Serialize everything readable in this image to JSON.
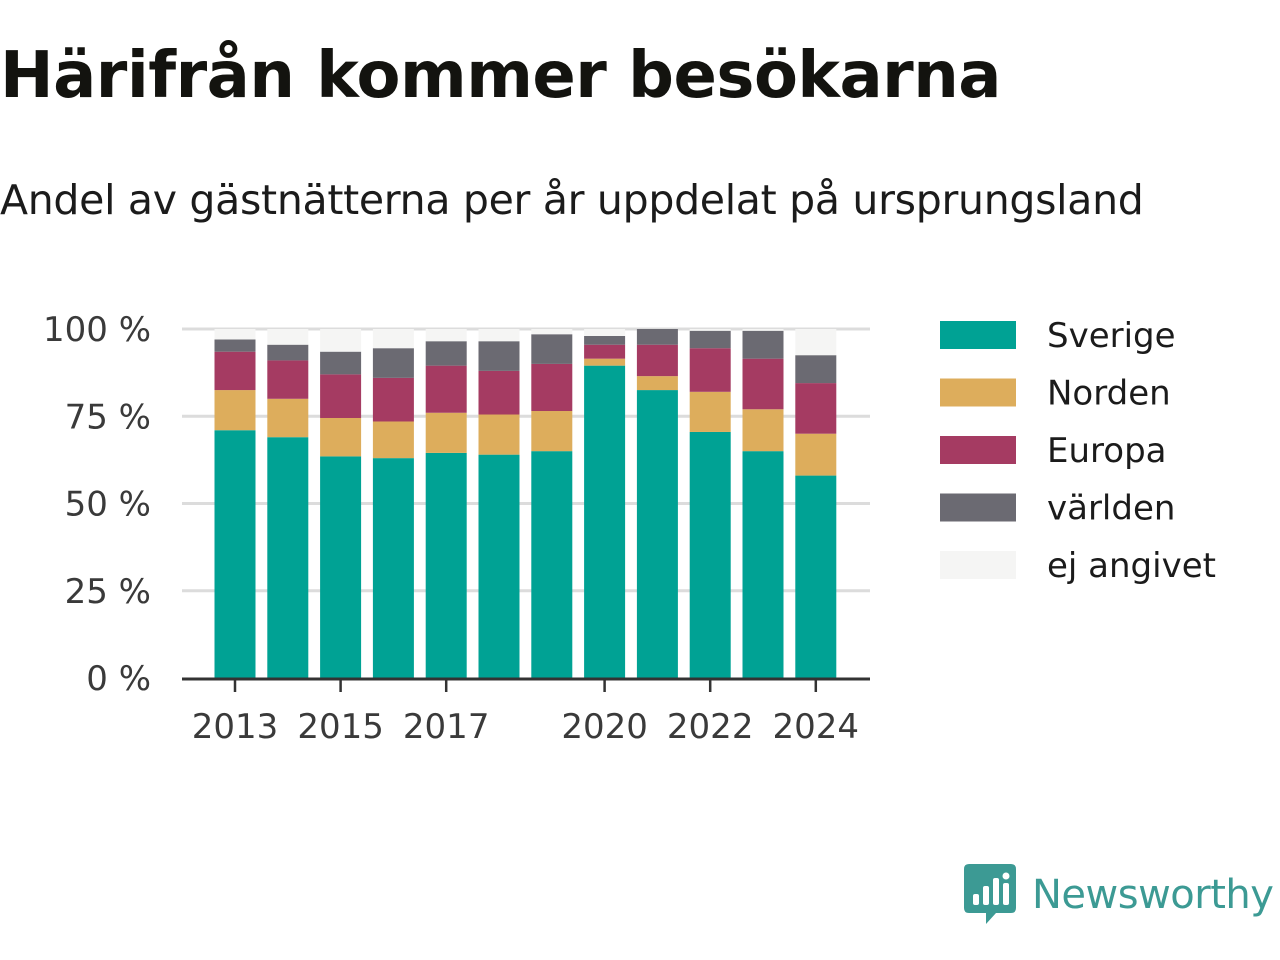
{
  "title": "Härifrån kommer besökarna",
  "subtitle": "Andel av gästnätterna per år uppdelat på ursprungsland",
  "brand": {
    "name": "Newsworthy",
    "color": "#3c9a94",
    "icon": "newsworthy-logo-icon"
  },
  "chart_data": {
    "type": "bar",
    "stacked": true,
    "categories": [
      "2013",
      "2014",
      "2015",
      "2016",
      "2017",
      "2018",
      "2019",
      "2020",
      "2021",
      "2022",
      "2023",
      "2024"
    ],
    "x_tick_labels": [
      "2013",
      "2015",
      "2017",
      "2020",
      "2022",
      "2024"
    ],
    "y_ticks": [
      "0 %",
      "25 %",
      "50 %",
      "75 %",
      "100 %"
    ],
    "ylim": [
      0,
      100
    ],
    "grid": true,
    "legend_position": "right",
    "series": [
      {
        "name": "Sverige",
        "color": "#00a294",
        "values": [
          71,
          69,
          63.5,
          63,
          64.5,
          64,
          65,
          89.5,
          82.5,
          70.5,
          65,
          58
        ]
      },
      {
        "name": "Norden",
        "color": "#ddad5c",
        "values": [
          11.5,
          11,
          11,
          10.5,
          11.5,
          11.5,
          11.5,
          2,
          4,
          11.5,
          12,
          12
        ]
      },
      {
        "name": "Europa",
        "color": "#a53b62",
        "values": [
          11,
          11,
          12.5,
          12.5,
          13.5,
          12.5,
          13.5,
          4,
          9,
          12.5,
          14.5,
          14.5
        ]
      },
      {
        "name": "världen",
        "color": "#6b6a72",
        "values": [
          3.5,
          4.5,
          6.5,
          8.5,
          7,
          8.5,
          8.5,
          2.5,
          4.5,
          5,
          8,
          8
        ]
      },
      {
        "name": "ej angivet",
        "color": "#f5f5f4",
        "values": [
          3,
          4.5,
          6.5,
          5.5,
          3.5,
          3.5,
          1.5,
          2,
          0,
          0.5,
          0.5,
          7.5
        ]
      }
    ]
  }
}
